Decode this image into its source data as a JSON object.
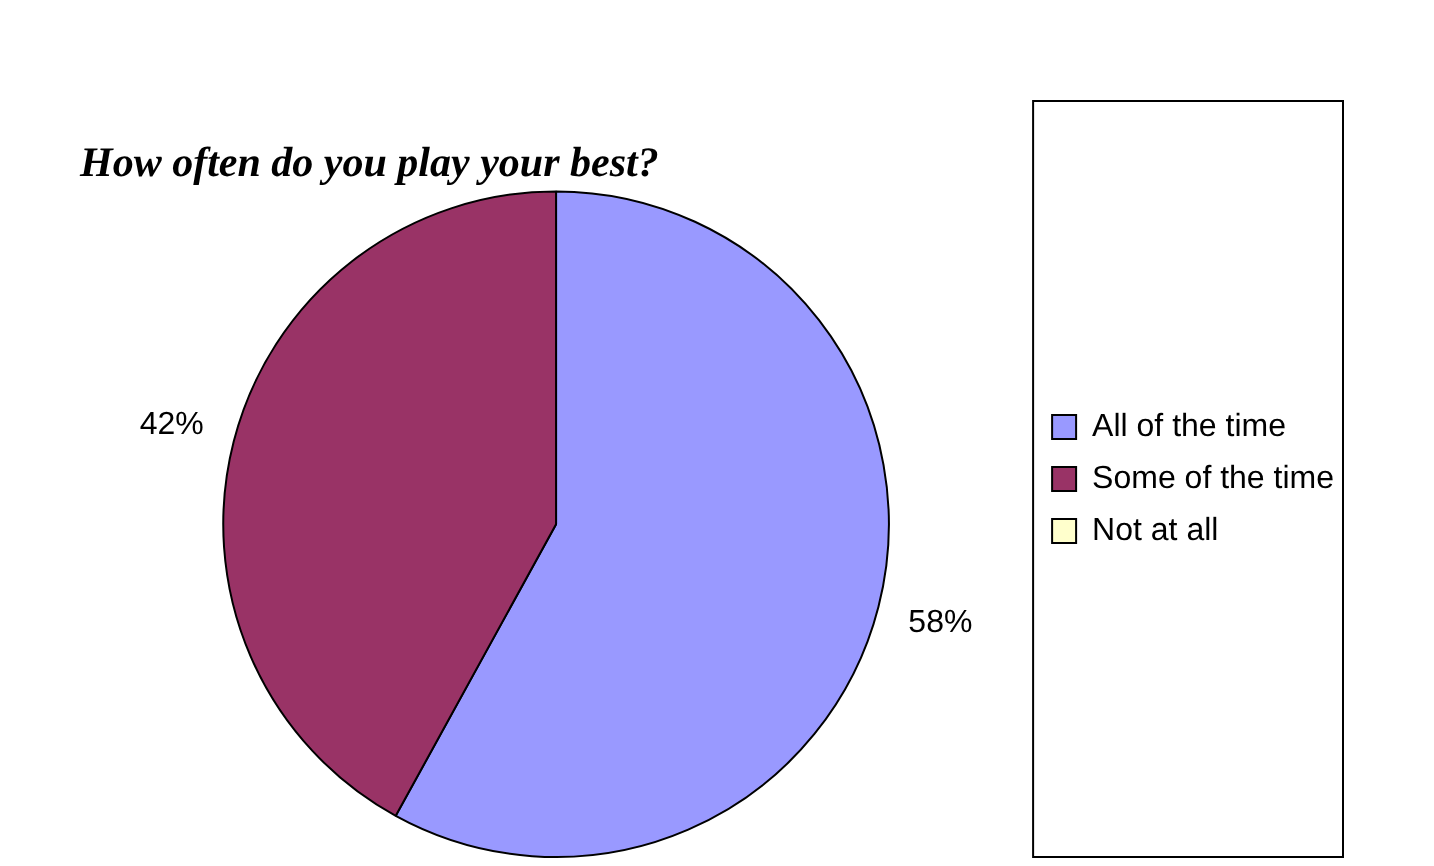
{
  "chart_data": {
    "type": "pie",
    "title": "How often do you play your best?",
    "categories": [
      "All of the time",
      "Some of the time",
      "Not at all"
    ],
    "values": [
      58,
      42,
      0
    ],
    "colors": [
      "#9999ff",
      "#993366",
      "#ffffcc"
    ],
    "value_labels": [
      "58%",
      "42%",
      null
    ],
    "legend": "right"
  }
}
